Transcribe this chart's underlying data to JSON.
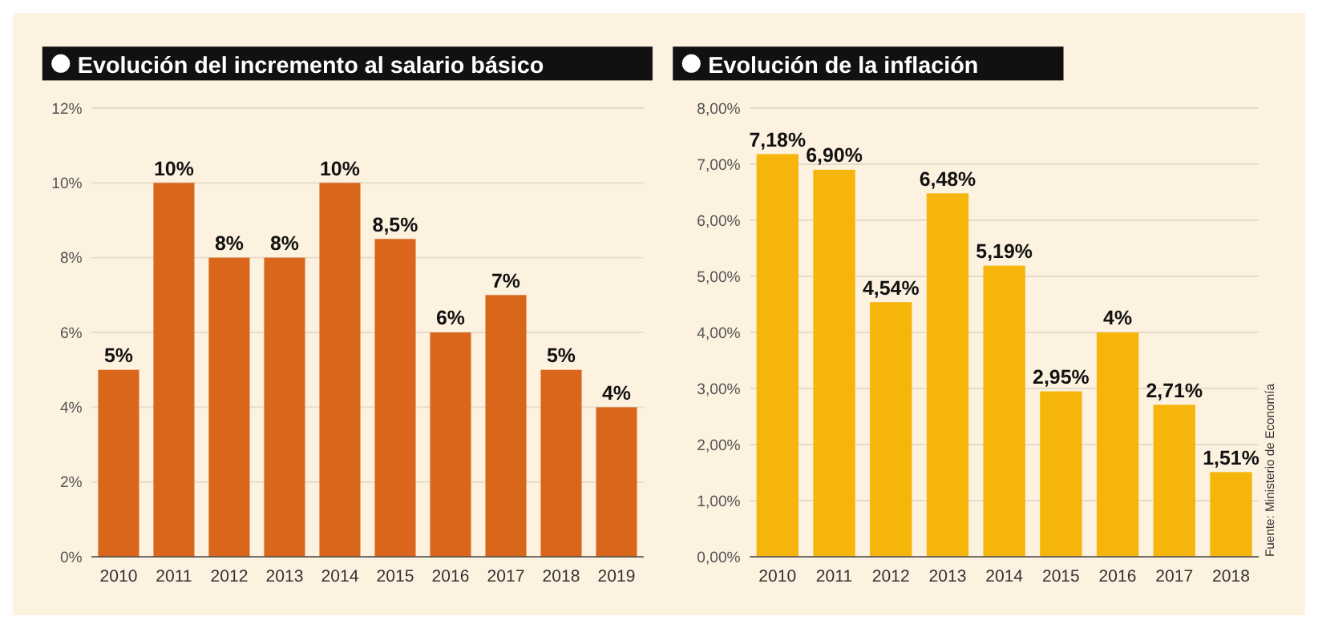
{
  "chart_data": [
    {
      "type": "bar",
      "title": "Evolución del incremento al salario básico",
      "categories": [
        "2010",
        "2011",
        "2012",
        "2013",
        "2014",
        "2015",
        "2016",
        "2017",
        "2018",
        "2019"
      ],
      "values": [
        5,
        10,
        8,
        8,
        10,
        8.5,
        6,
        7,
        5,
        4
      ],
      "value_labels": [
        "5%",
        "10%",
        "8%",
        "8%",
        "10%",
        "8,5%",
        "6%",
        "7%",
        "5%",
        "4%"
      ],
      "color": "#d9661a",
      "ylim": [
        0,
        12
      ],
      "yticks": [
        {
          "value": 0,
          "label": "0%"
        },
        {
          "value": 2,
          "label": "2%"
        },
        {
          "value": 4,
          "label": "4%"
        },
        {
          "value": 6,
          "label": "6%"
        },
        {
          "value": 8,
          "label": "8%"
        },
        {
          "value": 10,
          "label": "10%"
        },
        {
          "value": 12,
          "label": "12%"
        }
      ],
      "grid": "y"
    },
    {
      "type": "bar",
      "title": "Evolución de la inflación",
      "categories": [
        "2010",
        "2011",
        "2012",
        "2013",
        "2014",
        "2015",
        "2016",
        "2017",
        "2018"
      ],
      "values": [
        7.18,
        6.9,
        4.54,
        6.48,
        5.19,
        2.95,
        4,
        2.71,
        1.51
      ],
      "value_labels": [
        "7,18%",
        "6,90%",
        "4,54%",
        "6,48%",
        "5,19%",
        "2,95%",
        "4%",
        "2,71%",
        "1,51%"
      ],
      "color": "#f5b50a",
      "ylim": [
        0,
        8
      ],
      "yticks": [
        {
          "value": 0,
          "label": "0,00%"
        },
        {
          "value": 1,
          "label": "1,00%"
        },
        {
          "value": 2,
          "label": "2,00%"
        },
        {
          "value": 3,
          "label": "3,00%"
        },
        {
          "value": 4,
          "label": "4,00%"
        },
        {
          "value": 5,
          "label": "5,00%"
        },
        {
          "value": 6,
          "label": "6,00%"
        },
        {
          "value": 7,
          "label": "7,00%"
        },
        {
          "value": 8,
          "label": "8,00%"
        }
      ],
      "grid": "y",
      "annotations": [
        "Fuente: Ministerio de Economía"
      ]
    }
  ]
}
